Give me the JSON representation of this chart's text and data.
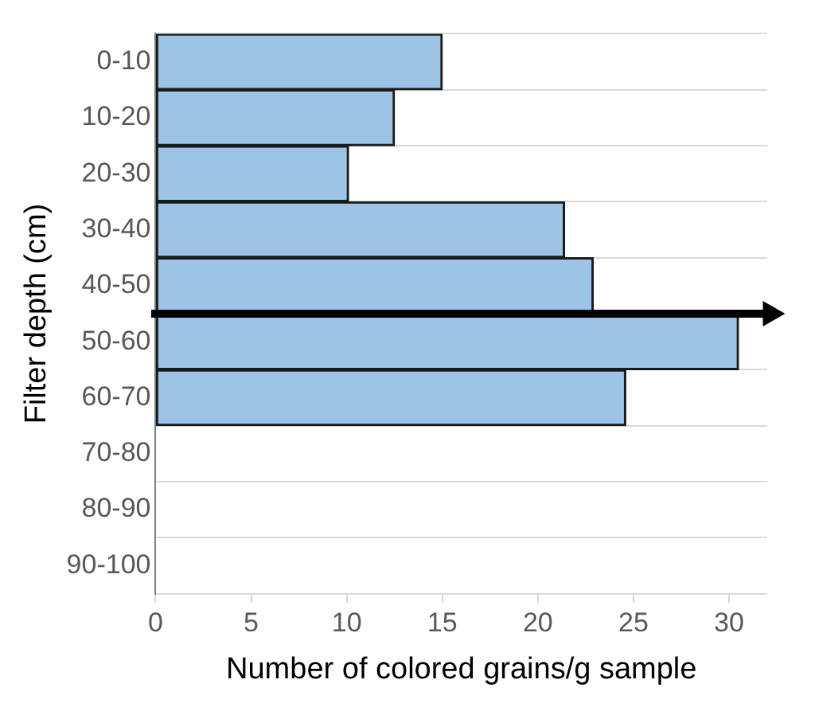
{
  "chart_data": {
    "type": "bar",
    "orientation": "horizontal",
    "xlabel": "Number of colored grains/g sample",
    "ylabel": "Filter depth (cm)",
    "categories": [
      "0-10",
      "10-20",
      "20-30",
      "30-40",
      "40-50",
      "50-60",
      "60-70",
      "70-80",
      "80-90",
      "90-100"
    ],
    "values": [
      15,
      12.5,
      10.1,
      21.4,
      22.9,
      30.5,
      24.6,
      0,
      0,
      0
    ],
    "color": "#9dc3e6",
    "xlim": [
      0,
      32
    ],
    "xticks": [
      0,
      5,
      10,
      15,
      20,
      25,
      30
    ],
    "grid": "y",
    "legend": false
  }
}
